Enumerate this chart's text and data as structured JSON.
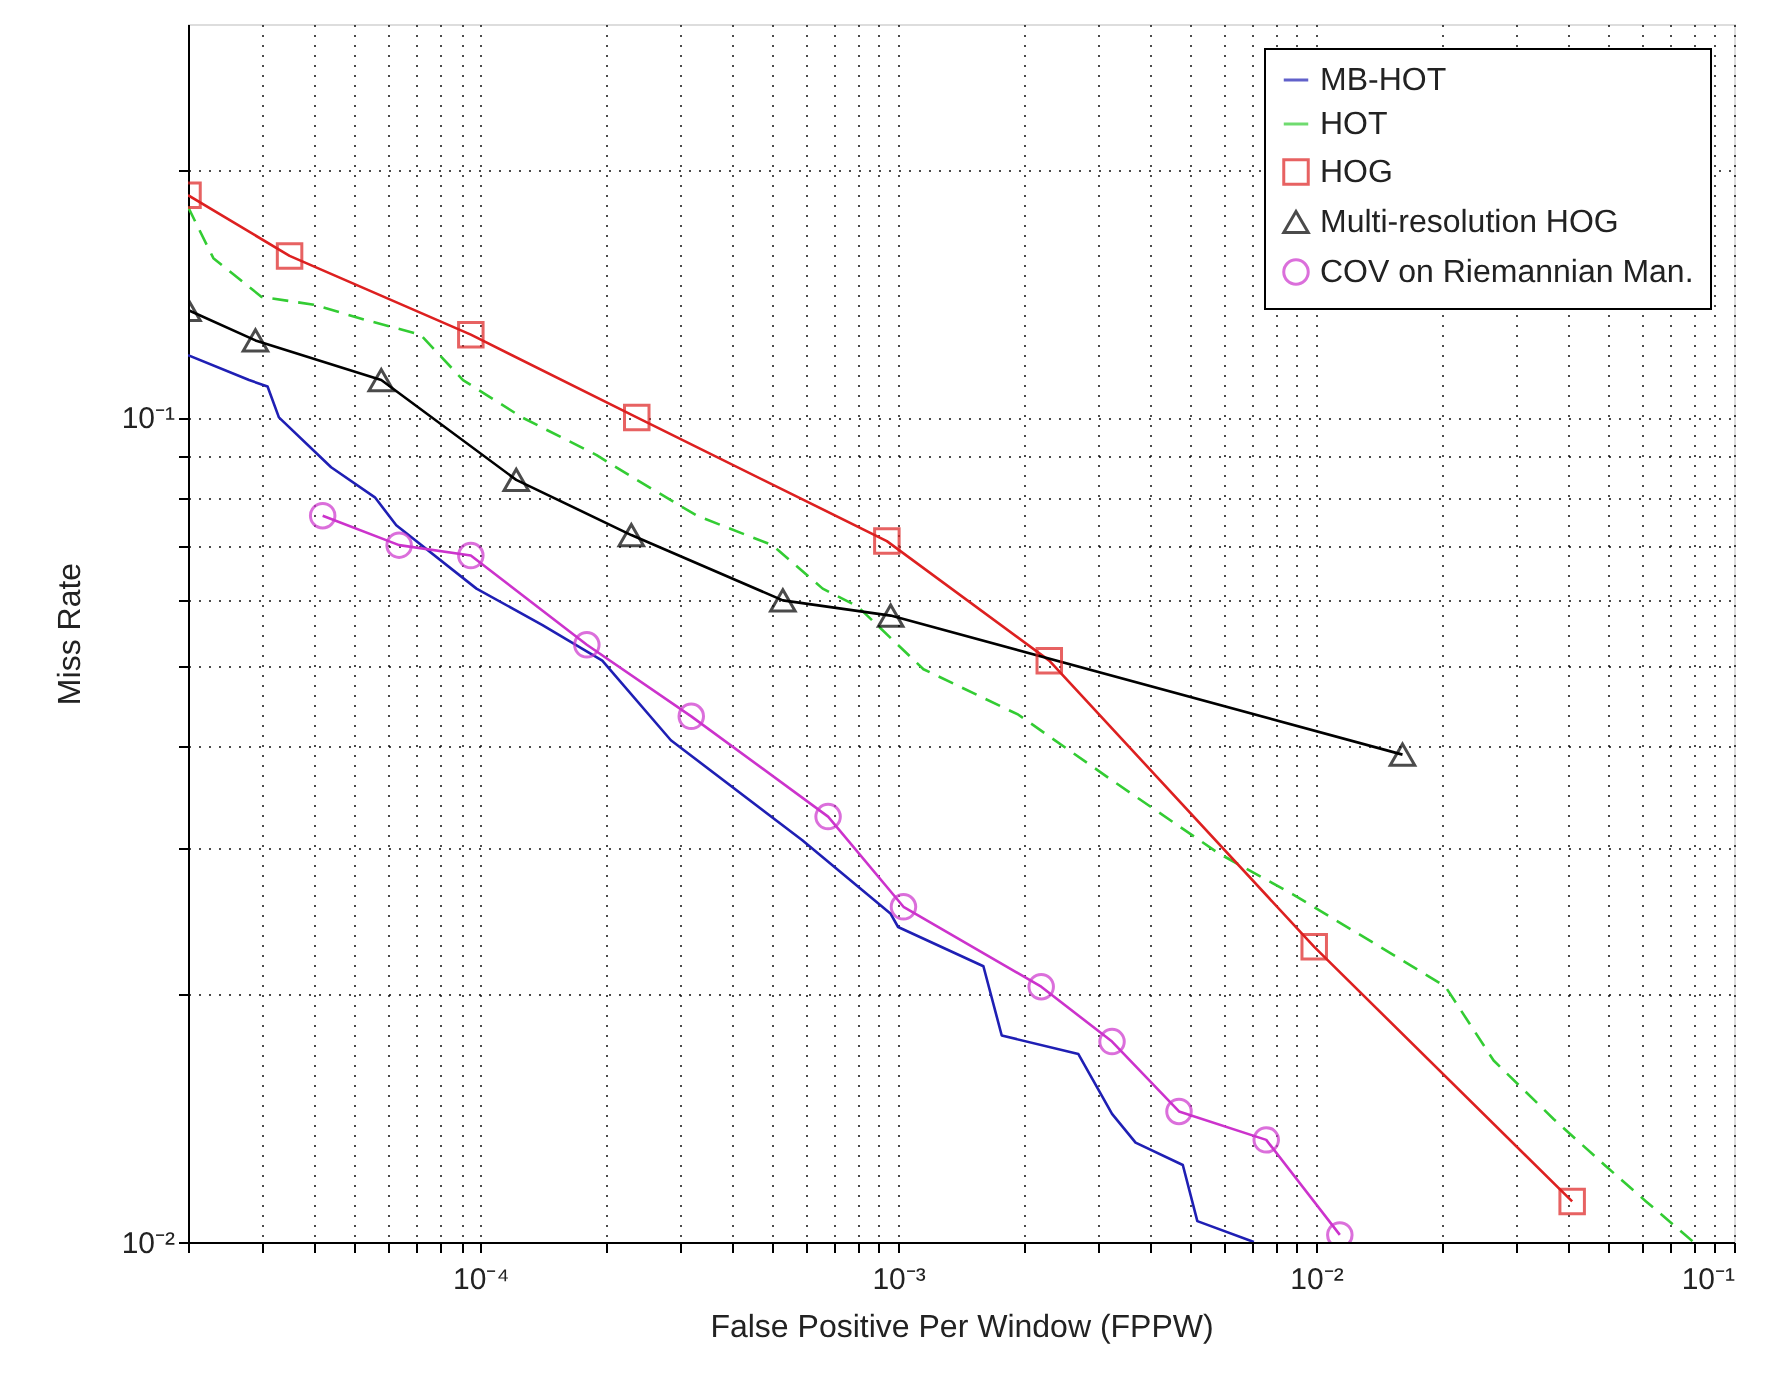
{
  "chart_data": {
    "type": "line",
    "xlabel": "False Positive Per Window (FPPW)",
    "ylabel": "Miss Rate",
    "log": "xy",
    "grid": true,
    "legend": "top right",
    "xlim": [
      2e-05,
      0.1
    ],
    "ylim": [
      0.01,
      0.3
    ],
    "xticks": [
      {
        "value": 2e-05,
        "label": null
      },
      {
        "value": 3e-05,
        "label": null
      },
      {
        "value": 4e-05,
        "label": null
      },
      {
        "value": 5e-05,
        "label": null
      },
      {
        "value": 6e-05,
        "label": null
      },
      {
        "value": 7e-05,
        "label": null
      },
      {
        "value": 8e-05,
        "label": null
      },
      {
        "value": 9e-05,
        "label": null
      },
      {
        "value": 0.0001,
        "label": "10⁻⁴"
      },
      {
        "value": 0.0002,
        "label": null
      },
      {
        "value": 0.0003,
        "label": null
      },
      {
        "value": 0.0004,
        "label": null
      },
      {
        "value": 0.0005,
        "label": null
      },
      {
        "value": 0.0006,
        "label": null
      },
      {
        "value": 0.0007,
        "label": null
      },
      {
        "value": 0.0008,
        "label": null
      },
      {
        "value": 0.0009,
        "label": null
      },
      {
        "value": 0.001,
        "label": "10⁻³"
      },
      {
        "value": 0.002,
        "label": null
      },
      {
        "value": 0.003,
        "label": null
      },
      {
        "value": 0.004,
        "label": null
      },
      {
        "value": 0.005,
        "label": null
      },
      {
        "value": 0.006,
        "label": null
      },
      {
        "value": 0.007,
        "label": null
      },
      {
        "value": 0.008,
        "label": null
      },
      {
        "value": 0.009,
        "label": null
      },
      {
        "value": 0.01,
        "label": "10⁻²"
      },
      {
        "value": 0.02,
        "label": null
      },
      {
        "value": 0.03,
        "label": null
      },
      {
        "value": 0.04,
        "label": null
      },
      {
        "value": 0.05,
        "label": null
      },
      {
        "value": 0.06,
        "label": null
      },
      {
        "value": 0.07,
        "label": null
      },
      {
        "value": 0.08,
        "label": null
      },
      {
        "value": 0.09,
        "label": null
      },
      {
        "value": 0.1,
        "label": "10⁻¹"
      }
    ],
    "yticks": [
      {
        "value": 0.01,
        "label": "10⁻²"
      },
      {
        "value": 0.02,
        "label": null
      },
      {
        "value": 0.03,
        "label": null
      },
      {
        "value": 0.04,
        "label": null
      },
      {
        "value": 0.05,
        "label": null
      },
      {
        "value": 0.06,
        "label": null
      },
      {
        "value": 0.07,
        "label": null
      },
      {
        "value": 0.08,
        "label": null
      },
      {
        "value": 0.09,
        "label": null
      },
      {
        "value": 0.1,
        "label": "10⁻¹"
      },
      {
        "value": 0.2,
        "label": null
      }
    ],
    "series": [
      {
        "name": "MB-HOT",
        "color": "#1f1fb4",
        "marker": "none",
        "line_style": "solid",
        "x": [
          2e-05,
          2.8e-05,
          3.1e-05,
          3.3e-05,
          4.4e-05,
          5.6e-05,
          6.3e-05,
          9.8e-05,
          0.000141,
          0.000196,
          0.000286,
          0.00059,
          0.00096,
          0.001,
          0.0016,
          0.00177,
          0.0027,
          0.00325,
          0.0037,
          0.0048,
          0.0052,
          0.0071
        ],
        "values": [
          0.119,
          0.111,
          0.109,
          0.1,
          0.087,
          0.08,
          0.074,
          0.062,
          0.056,
          0.0507,
          0.0406,
          0.0307,
          0.025,
          0.0241,
          0.0216,
          0.0178,
          0.0169,
          0.0143,
          0.0132,
          0.0124,
          0.0106,
          0.01
        ]
      },
      {
        "name": "HOT",
        "color": "#33cc33",
        "marker": "none",
        "line_style": "dashed",
        "x": [
          2e-05,
          2.3e-05,
          3e-05,
          4e-05,
          5.4e-05,
          7.2e-05,
          9.1e-05,
          0.000126,
          0.00019,
          0.000237,
          0.00033,
          0.0005,
          0.00066,
          0.0008,
          0.00115,
          0.00194,
          0.00325,
          0.00585,
          0.0088,
          0.0153,
          0.0204,
          0.0266,
          0.037,
          0.049,
          0.0616,
          0.08
        ],
        "values": [
          0.18,
          0.156,
          0.14,
          0.137,
          0.131,
          0.126,
          0.111,
          0.1,
          0.09,
          0.084,
          0.076,
          0.07,
          0.062,
          0.059,
          0.0495,
          0.0436,
          0.0363,
          0.0296,
          0.0264,
          0.0223,
          0.0204,
          0.0166,
          0.0141,
          0.0124,
          0.0112,
          0.01
        ]
      },
      {
        "name": "HOG",
        "color": "#dd2020",
        "marker": "square",
        "line_style": "solid",
        "x": [
          2e-05,
          3.5e-05,
          9.5e-05,
          0.000237,
          0.00094,
          0.0023,
          0.0099,
          0.041
        ],
        "values": [
          0.186,
          0.157,
          0.126,
          0.1,
          0.0708,
          0.0507,
          0.0228,
          0.0112
        ]
      },
      {
        "name": "Multi-resolution HOG",
        "color": "#000000",
        "marker": "triangle",
        "line_style": "solid",
        "x": [
          2e-05,
          2.9e-05,
          5.8e-05,
          0.000122,
          0.00023,
          0.00053,
          0.00096,
          0.0161
        ],
        "values": [
          0.135,
          0.124,
          0.111,
          0.084,
          0.072,
          0.06,
          0.0575,
          0.039
        ]
      },
      {
        "name": "COV on Riemannian Man.",
        "color": "#cc33cc",
        "marker": "circle",
        "line_style": "solid",
        "x": [
          4.2e-05,
          6.4e-05,
          9.5e-05,
          0.00018,
          0.00032,
          0.00068,
          0.00103,
          0.0022,
          0.00325,
          0.0047,
          0.0076,
          0.0114
        ],
        "values": [
          0.076,
          0.07,
          0.068,
          0.053,
          0.0434,
          0.0328,
          0.0255,
          0.0204,
          0.0175,
          0.0144,
          0.0133,
          0.0102
        ]
      }
    ]
  }
}
